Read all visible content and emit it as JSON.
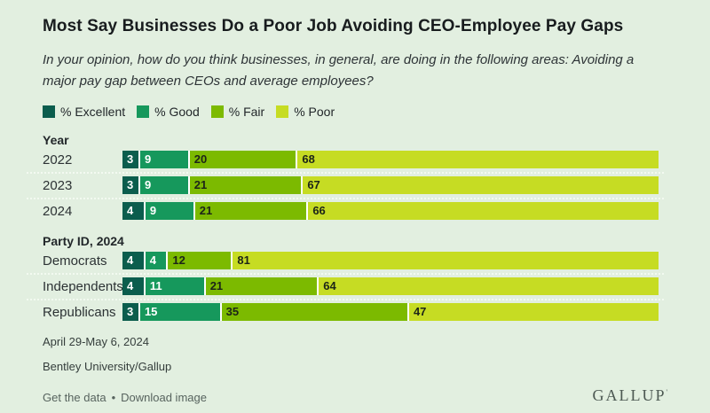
{
  "title": "Most Say Businesses Do a Poor Job Avoiding CEO-Employee Pay Gaps",
  "subtitle": "In your opinion, how do you think businesses, in general, are doing in the following areas: Avoiding a major pay gap between CEOs and average employees?",
  "series": [
    {
      "name": "% Excellent",
      "color": "#0b5d4d",
      "value_color": "#ffffff"
    },
    {
      "name": "% Good",
      "color": "#16985c",
      "value_color": "#ffffff"
    },
    {
      "name": "% Fair",
      "color": "#7cba00",
      "value_color": "#1c2418"
    },
    {
      "name": "% Poor",
      "color": "#c6dc23",
      "value_color": "#1c2418"
    }
  ],
  "chart_data": {
    "type": "bar",
    "orientation": "horizontal",
    "stacked": true,
    "unit": "percent",
    "x_max": 100,
    "legend_position": "top",
    "series_names": [
      "% Excellent",
      "% Good",
      "% Fair",
      "% Poor"
    ],
    "sections": [
      {
        "header": "Year",
        "rows": [
          {
            "label": "2022",
            "values": [
              3,
              9,
              20,
              68
            ]
          },
          {
            "label": "2023",
            "values": [
              3,
              9,
              21,
              67
            ]
          },
          {
            "label": "2024",
            "values": [
              4,
              9,
              21,
              66
            ]
          }
        ]
      },
      {
        "header": "Party ID, 2024",
        "rows": [
          {
            "label": "Democrats",
            "values": [
              4,
              4,
              12,
              81
            ]
          },
          {
            "label": "Independents",
            "values": [
              4,
              11,
              21,
              64
            ]
          },
          {
            "label": "Republicans",
            "values": [
              3,
              15,
              35,
              47
            ]
          }
        ]
      }
    ]
  },
  "footer": {
    "field_dates": "April 29-May 6, 2024",
    "source": "Bentley University/Gallup",
    "link_get_data": "Get the data",
    "link_separator": "•",
    "link_download": "Download image",
    "logo": "GALLUP",
    "logo_mark": "'"
  },
  "colors": {
    "background": "#e2efe0",
    "separator": "#f3faf1",
    "segment_gap": "#ffffff"
  }
}
